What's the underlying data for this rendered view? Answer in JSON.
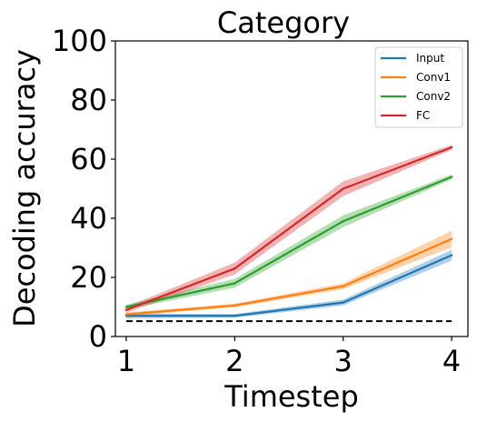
{
  "chart_data": {
    "type": "line",
    "title": "Category",
    "xlabel": "Timestep",
    "ylabel": "Decoding accuracy",
    "x": [
      1,
      2,
      3,
      4
    ],
    "xlim": [
      0.9,
      4.15
    ],
    "ylim": [
      0,
      100
    ],
    "xticks": [
      "1",
      "2",
      "3",
      "4"
    ],
    "yticks": [
      "0",
      "20",
      "40",
      "60",
      "80",
      "100"
    ],
    "grid": false,
    "legend_position": "top-right",
    "series": [
      {
        "name": "Input",
        "color": "#1f77b4",
        "values": [
          7,
          7,
          11.5,
          27.5
        ],
        "band": [
          0.8,
          0.6,
          1.0,
          1.8
        ]
      },
      {
        "name": "Conv1",
        "color": "#ff7f0e",
        "values": [
          7.5,
          10.5,
          17,
          33
        ],
        "band": [
          0.6,
          0.6,
          1.0,
          2.8
        ]
      },
      {
        "name": "Conv2",
        "color": "#2ca02c",
        "values": [
          10,
          18,
          39,
          54
        ],
        "band": [
          0.8,
          1.5,
          2.0,
          0.8
        ]
      },
      {
        "name": "FC",
        "color": "#d62728",
        "values": [
          9,
          23,
          50,
          64
        ],
        "band": [
          1.0,
          2.0,
          2.5,
          0.8
        ]
      }
    ],
    "baseline": {
      "value": 5.2,
      "style": "dashed",
      "color": "#000000"
    }
  }
}
